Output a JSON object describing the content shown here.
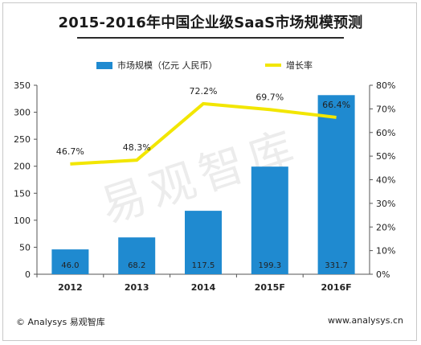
{
  "chart_data": {
    "type": "bar",
    "title": "2015-2016年中国企业级SaaS市场规模预测",
    "categories": [
      "2012",
      "2013",
      "2014",
      "2015F",
      "2016F"
    ],
    "series": [
      {
        "name": "市场规模（亿元 人民币）",
        "type": "bar",
        "values": [
          46.0,
          68.2,
          117.5,
          199.3,
          331.7
        ],
        "labels": [
          "46.0",
          "68.2",
          "117.5",
          "199.3",
          "331.7"
        ],
        "color": "#1f8ad0",
        "axis": "left"
      },
      {
        "name": "增长率",
        "type": "line",
        "values": [
          46.7,
          48.3,
          72.2,
          69.7,
          66.4
        ],
        "labels": [
          "46.7%",
          "48.3%",
          "72.2%",
          "69.7%",
          "66.4%"
        ],
        "color": "#f2e600",
        "axis": "right"
      }
    ],
    "y_left": {
      "min": 0,
      "max": 350,
      "ticks": [
        "0",
        "50",
        "100",
        "150",
        "200",
        "250",
        "300",
        "350"
      ]
    },
    "y_right": {
      "min": 0,
      "max": 80,
      "ticks": [
        "0%",
        "10%",
        "20%",
        "30%",
        "40%",
        "50%",
        "60%",
        "70%",
        "80%"
      ]
    },
    "legend_position": "top-center",
    "grid": false
  },
  "watermark": "易观智库",
  "footer": {
    "source": "© Analysys 易观智库",
    "url": "www.analysys.cn"
  }
}
